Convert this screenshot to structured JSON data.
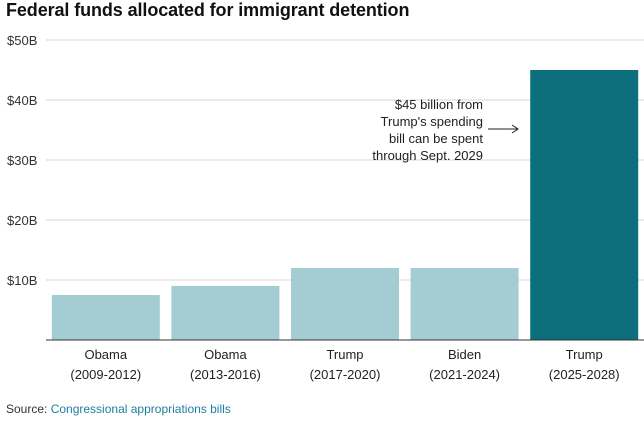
{
  "title": "Federal funds allocated for immigrant detention",
  "source": {
    "label": "Source:",
    "link_text": "Congressional appropriations bills"
  },
  "colors": {
    "bar": "#a3cdd2",
    "bar_highlight": "#0e6f7c",
    "grid": "#d7d7d7",
    "axis": "#333333",
    "link": "#1f7ea1"
  },
  "chart_data": {
    "type": "bar",
    "title": "Federal funds allocated for immigrant detention",
    "xlabel": "",
    "ylabel": "",
    "ylim": [
      0,
      50
    ],
    "yticks": [
      10,
      20,
      30,
      40,
      50
    ],
    "ytick_labels": [
      "$10B",
      "$20B",
      "$30B",
      "$40B",
      "$50B"
    ],
    "grid": true,
    "categories": [
      [
        "Obama",
        "(2009-2012)"
      ],
      [
        "Obama",
        "(2013-2016)"
      ],
      [
        "Trump",
        "(2017-2020)"
      ],
      [
        "Biden",
        "(2021-2024)"
      ],
      [
        "Trump",
        "(2025-2028)"
      ]
    ],
    "values": [
      7.5,
      9,
      12,
      12,
      45
    ],
    "highlight_index": 4,
    "annotation": {
      "lines": [
        "$45 billion from",
        "Trump's spending",
        "bill can be spent",
        "through Sept. 2029"
      ],
      "arrow": "right"
    }
  }
}
